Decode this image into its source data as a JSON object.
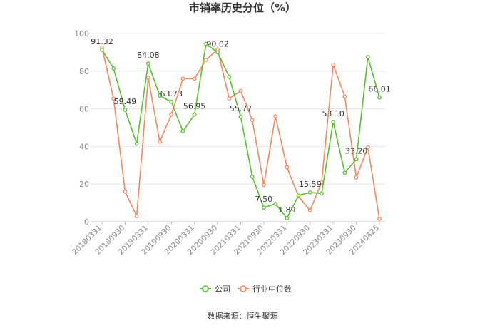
{
  "chart_data": {
    "type": "line",
    "title": "市销率历史分位（%）",
    "xlabel": "",
    "ylabel": "",
    "ylim": [
      0,
      100
    ],
    "yticks": [
      0,
      20,
      40,
      60,
      80,
      100
    ],
    "grid": true,
    "legend_position": "bottom",
    "x": [
      "20180331",
      "20180630",
      "20180930",
      "20181231",
      "20190331",
      "20190630",
      "20190930",
      "20191231",
      "20200331",
      "20200630",
      "20200930",
      "20201231",
      "20210331",
      "20210630",
      "20210930",
      "20211231",
      "20220331",
      "20220630",
      "20220930",
      "20221231",
      "20230331",
      "20230630",
      "20230930",
      "20231231",
      "20240425"
    ],
    "x_tick_labels": [
      "20180331",
      "20180930",
      "20190331",
      "20190930",
      "20200331",
      "20200930",
      "20210331",
      "20210930",
      "20220331",
      "20220930",
      "20230331",
      "20230930",
      "20240425"
    ],
    "series": [
      {
        "name": "公司",
        "color": "#5ac02f",
        "values": [
          91.32,
          81.5,
          59.49,
          41.5,
          84.08,
          67.0,
          63.73,
          48.0,
          56.95,
          94.5,
          90.02,
          77.0,
          55.77,
          24.0,
          7.5,
          9.5,
          1.89,
          14.0,
          15.59,
          15.0,
          53.1,
          26.0,
          33.2,
          87.5,
          66.01
        ],
        "labels": {
          "0": "91.32",
          "2": "59.49",
          "4": "84.08",
          "6": "63.73",
          "8": "56.95",
          "10": "90.02",
          "12": "55.77",
          "14": "7.50",
          "16": "1.89",
          "18": "15.59",
          "20": "53.10",
          "22": "33.20",
          "24": "66.01"
        }
      },
      {
        "name": "行业中位数",
        "color": "#f4885e",
        "values": [
          92.5,
          65.5,
          16.0,
          3.0,
          76.5,
          42.5,
          57.0,
          76.0,
          76.0,
          86.0,
          91.5,
          65.5,
          69.5,
          54.0,
          19.5,
          56.0,
          29.0,
          13.5,
          6.0,
          21.0,
          83.5,
          66.5,
          23.5,
          39.5,
          1.5
        ],
        "labels": {}
      }
    ]
  },
  "footer": {
    "source": "数据来源：恒生聚源"
  }
}
